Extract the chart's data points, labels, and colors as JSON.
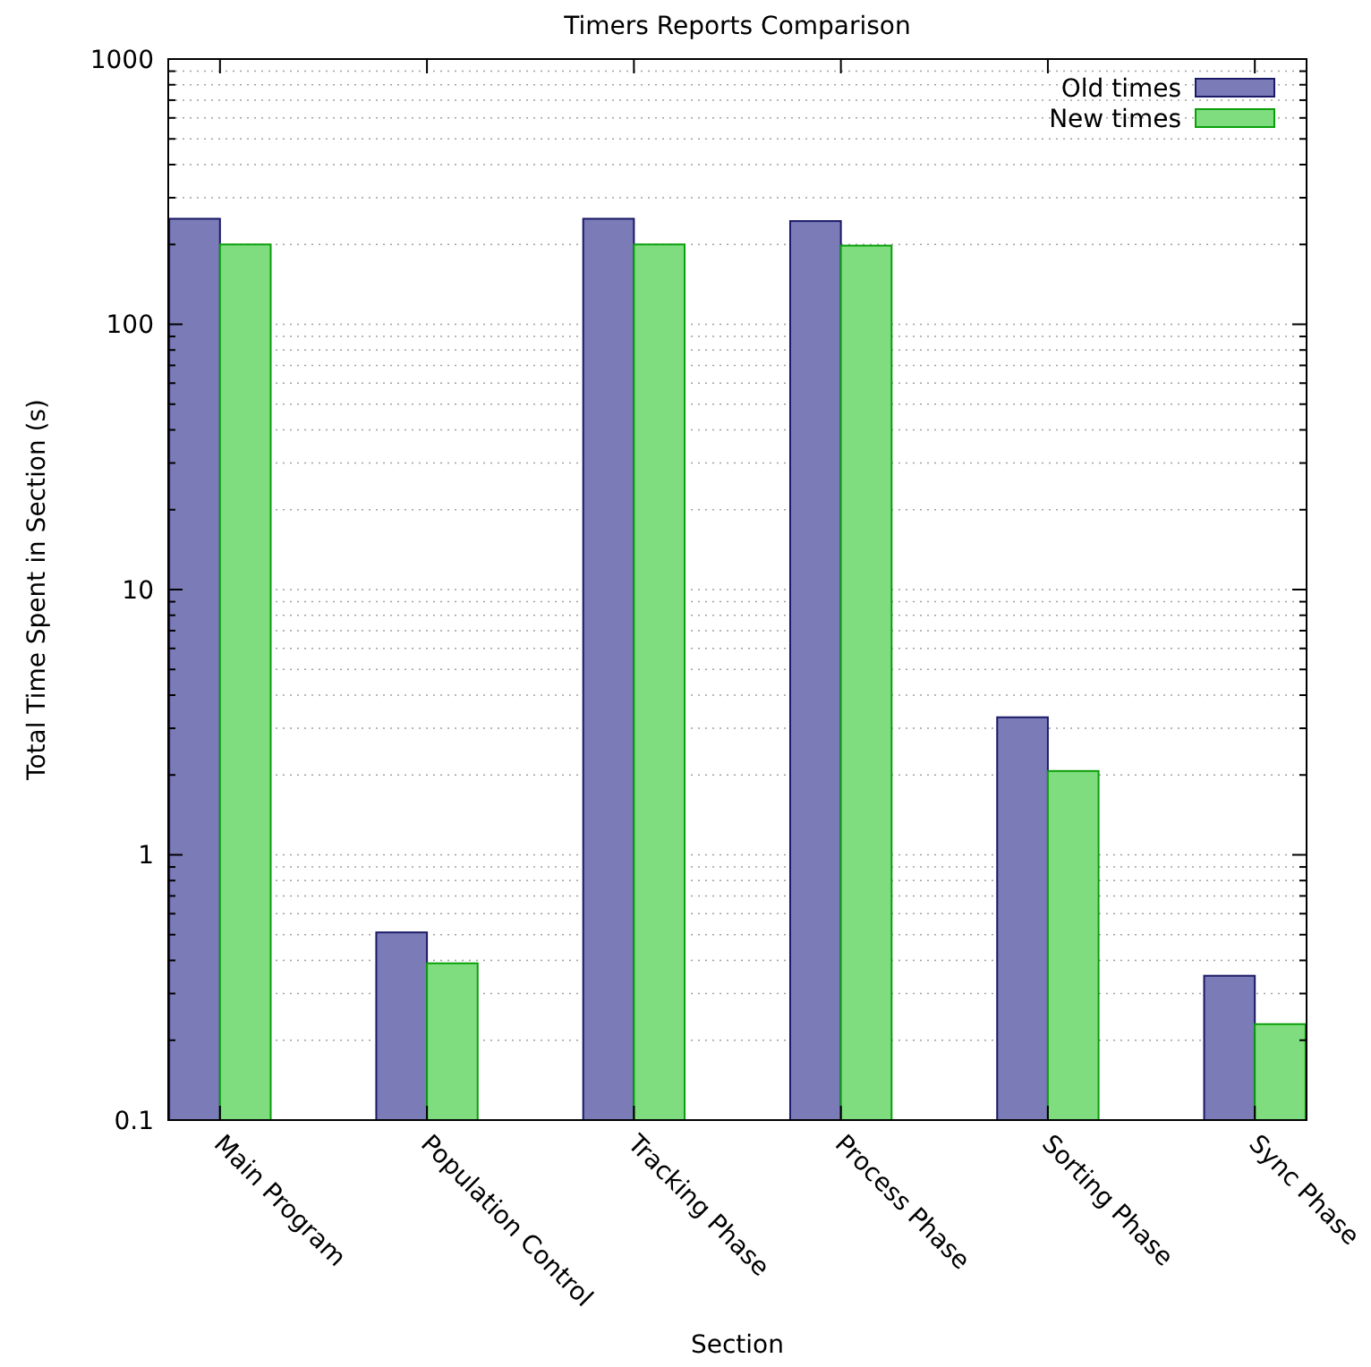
{
  "chart_data": {
    "type": "bar",
    "title": "Timers Reports Comparison",
    "xlabel": "Section",
    "ylabel": "Total Time Spent in Section (s)",
    "categories": [
      "Main Program",
      "Population Control",
      "Tracking Phase",
      "Process Phase",
      "Sorting Phase",
      "Sync Phase"
    ],
    "series": [
      {
        "name": "Old times",
        "color": "#7b7bb8",
        "values": [
          250,
          0.51,
          250,
          245,
          3.3,
          0.35
        ]
      },
      {
        "name": "New times",
        "color": "#7fdd7f",
        "values": [
          200,
          0.39,
          200,
          198,
          2.07,
          0.23
        ]
      }
    ],
    "log": true,
    "ylim": [
      0.1,
      1000
    ],
    "yticks": [
      0.1,
      {
        "value": 0.2,
        "label": null
      },
      {
        "value": 0.3,
        "label": null
      },
      {
        "value": 0.4,
        "label": null
      },
      {
        "value": 0.5,
        "label": null
      },
      {
        "value": 0.6,
        "label": null
      },
      {
        "value": 0.7,
        "label": null
      },
      {
        "value": 0.8,
        "label": null
      },
      {
        "value": 0.9,
        "label": null
      },
      1,
      {
        "value": 2,
        "label": null
      },
      {
        "value": 3,
        "label": null
      },
      {
        "value": 4,
        "label": null
      },
      {
        "value": 5,
        "label": null
      },
      {
        "value": 6,
        "label": null
      },
      {
        "value": 7,
        "label": null
      },
      {
        "value": 8,
        "label": null
      },
      {
        "value": 9,
        "label": null
      },
      10,
      {
        "value": 20,
        "label": null
      },
      {
        "value": 30,
        "label": null
      },
      {
        "value": 40,
        "label": null
      },
      {
        "value": 50,
        "label": null
      },
      {
        "value": 60,
        "label": null
      },
      {
        "value": 70,
        "label": null
      },
      {
        "value": 80,
        "label": null
      },
      {
        "value": 90,
        "label": null
      },
      100,
      {
        "value": 200,
        "label": null
      },
      {
        "value": 300,
        "label": null
      },
      {
        "value": 400,
        "label": null
      },
      {
        "value": 500,
        "label": null
      },
      {
        "value": 600,
        "label": null
      },
      {
        "value": 700,
        "label": null
      },
      {
        "value": 800,
        "label": null
      },
      {
        "value": 900,
        "label": null
      },
      1000
    ],
    "grid": "y",
    "legend": "top right"
  }
}
